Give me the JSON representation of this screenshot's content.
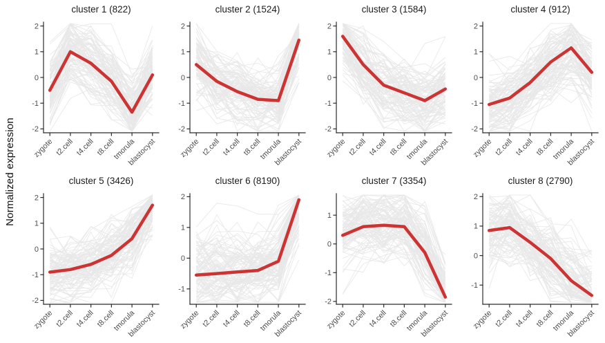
{
  "figure": {
    "y_axis_label": "Normalized expression",
    "x_categories": [
      "zygote",
      "t2.cell",
      "t4.cell",
      "t8.cell",
      "tmorula",
      "blastocyst"
    ],
    "colors": {
      "mean_line": "#cc3333",
      "member_lines": "#e5e5e5",
      "axis": "#2b2b2b",
      "tick_text": "#4d4d4d",
      "title_text": "#1c1c1c",
      "background": "#ffffff"
    },
    "layout": {
      "rows": 2,
      "cols": 4,
      "grid": "off",
      "legend": "none",
      "x_label_angle": 45
    }
  },
  "chart_data": [
    {
      "type": "line",
      "title": "cluster 1 (822)",
      "n_genes": 822,
      "categories": [
        "zygote",
        "t2.cell",
        "t4.cell",
        "t8.cell",
        "tmorula",
        "blastocyst"
      ],
      "series": [
        {
          "name": "cluster mean",
          "values": [
            -0.5,
            1.0,
            0.55,
            -0.15,
            -1.35,
            0.1
          ]
        }
      ],
      "background_lines": "individual gene trajectories (light gray)",
      "yticks": [
        2,
        1,
        0,
        -1,
        -2
      ],
      "ylim": [
        -2.15,
        2.15
      ]
    },
    {
      "type": "line",
      "title": "cluster 2 (1524)",
      "n_genes": 1524,
      "categories": [
        "zygote",
        "t2.cell",
        "t4.cell",
        "t8.cell",
        "tmorula",
        "blastocyst"
      ],
      "series": [
        {
          "name": "cluster mean",
          "values": [
            0.5,
            -0.15,
            -0.55,
            -0.85,
            -0.9,
            1.45
          ]
        }
      ],
      "background_lines": "individual gene trajectories (light gray)",
      "yticks": [
        2,
        1,
        0,
        -1,
        -2
      ],
      "ylim": [
        -2.15,
        2.15
      ]
    },
    {
      "type": "line",
      "title": "cluster 3 (1584)",
      "n_genes": 1584,
      "categories": [
        "zygote",
        "t2.cell",
        "t4.cell",
        "t8.cell",
        "tmorula",
        "blastocyst"
      ],
      "series": [
        {
          "name": "cluster mean",
          "values": [
            1.6,
            0.5,
            -0.3,
            -0.6,
            -0.9,
            -0.45
          ]
        }
      ],
      "background_lines": "individual gene trajectories (light gray)",
      "yticks": [
        2,
        1,
        0,
        -1,
        -2
      ],
      "ylim": [
        -2.15,
        2.15
      ]
    },
    {
      "type": "line",
      "title": "cluster 4 (912)",
      "n_genes": 912,
      "categories": [
        "zygote",
        "t2.cell",
        "t4.cell",
        "t8.cell",
        "tmorula",
        "blastocyst"
      ],
      "series": [
        {
          "name": "cluster mean",
          "values": [
            -1.05,
            -0.8,
            -0.2,
            0.6,
            1.15,
            0.2
          ]
        }
      ],
      "background_lines": "individual gene trajectories (light gray)",
      "yticks": [
        2,
        1,
        0,
        -1,
        -2
      ],
      "ylim": [
        -2.15,
        2.15
      ]
    },
    {
      "type": "line",
      "title": "cluster 5 (3426)",
      "n_genes": 3426,
      "categories": [
        "zygote",
        "t2.cell",
        "t4.cell",
        "t8.cell",
        "tmorula",
        "blastocyst"
      ],
      "series": [
        {
          "name": "cluster mean",
          "values": [
            -0.9,
            -0.8,
            -0.6,
            -0.25,
            0.4,
            1.7
          ]
        }
      ],
      "background_lines": "individual gene trajectories (light gray)",
      "yticks": [
        2,
        1,
        0,
        -1,
        -2
      ],
      "ylim": [
        -2.15,
        2.15
      ]
    },
    {
      "type": "line",
      "title": "cluster 6 (8190)",
      "n_genes": 8190,
      "categories": [
        "zygote",
        "t2.cell",
        "t4.cell",
        "t8.cell",
        "tmorula",
        "blastocyst"
      ],
      "series": [
        {
          "name": "cluster mean",
          "values": [
            -0.55,
            -0.5,
            -0.45,
            -0.4,
            -0.1,
            1.9
          ]
        }
      ],
      "background_lines": "individual gene trajectories (light gray)",
      "yticks": [
        2,
        1,
        0,
        -1
      ],
      "ylim": [
        -1.5,
        2.1
      ]
    },
    {
      "type": "line",
      "title": "cluster 7 (3354)",
      "n_genes": 3354,
      "categories": [
        "zygote",
        "t2.cell",
        "t4.cell",
        "t8.cell",
        "tmorula",
        "blastocyst"
      ],
      "series": [
        {
          "name": "cluster mean",
          "values": [
            0.3,
            0.6,
            0.65,
            0.6,
            -0.3,
            -1.85
          ]
        }
      ],
      "background_lines": "individual gene trajectories (light gray)",
      "yticks": [
        1,
        0,
        -1,
        -2
      ],
      "ylim": [
        -2.1,
        1.75
      ]
    },
    {
      "type": "line",
      "title": "cluster 8 (2790)",
      "n_genes": 2790,
      "categories": [
        "zygote",
        "t2.cell",
        "t4.cell",
        "t8.cell",
        "tmorula",
        "blastocyst"
      ],
      "series": [
        {
          "name": "cluster mean",
          "values": [
            0.85,
            0.95,
            0.45,
            -0.1,
            -0.85,
            -1.35
          ]
        }
      ],
      "background_lines": "individual gene trajectories (light gray)",
      "yticks": [
        2,
        1,
        0,
        -1
      ],
      "ylim": [
        -1.65,
        2.1
      ]
    }
  ]
}
